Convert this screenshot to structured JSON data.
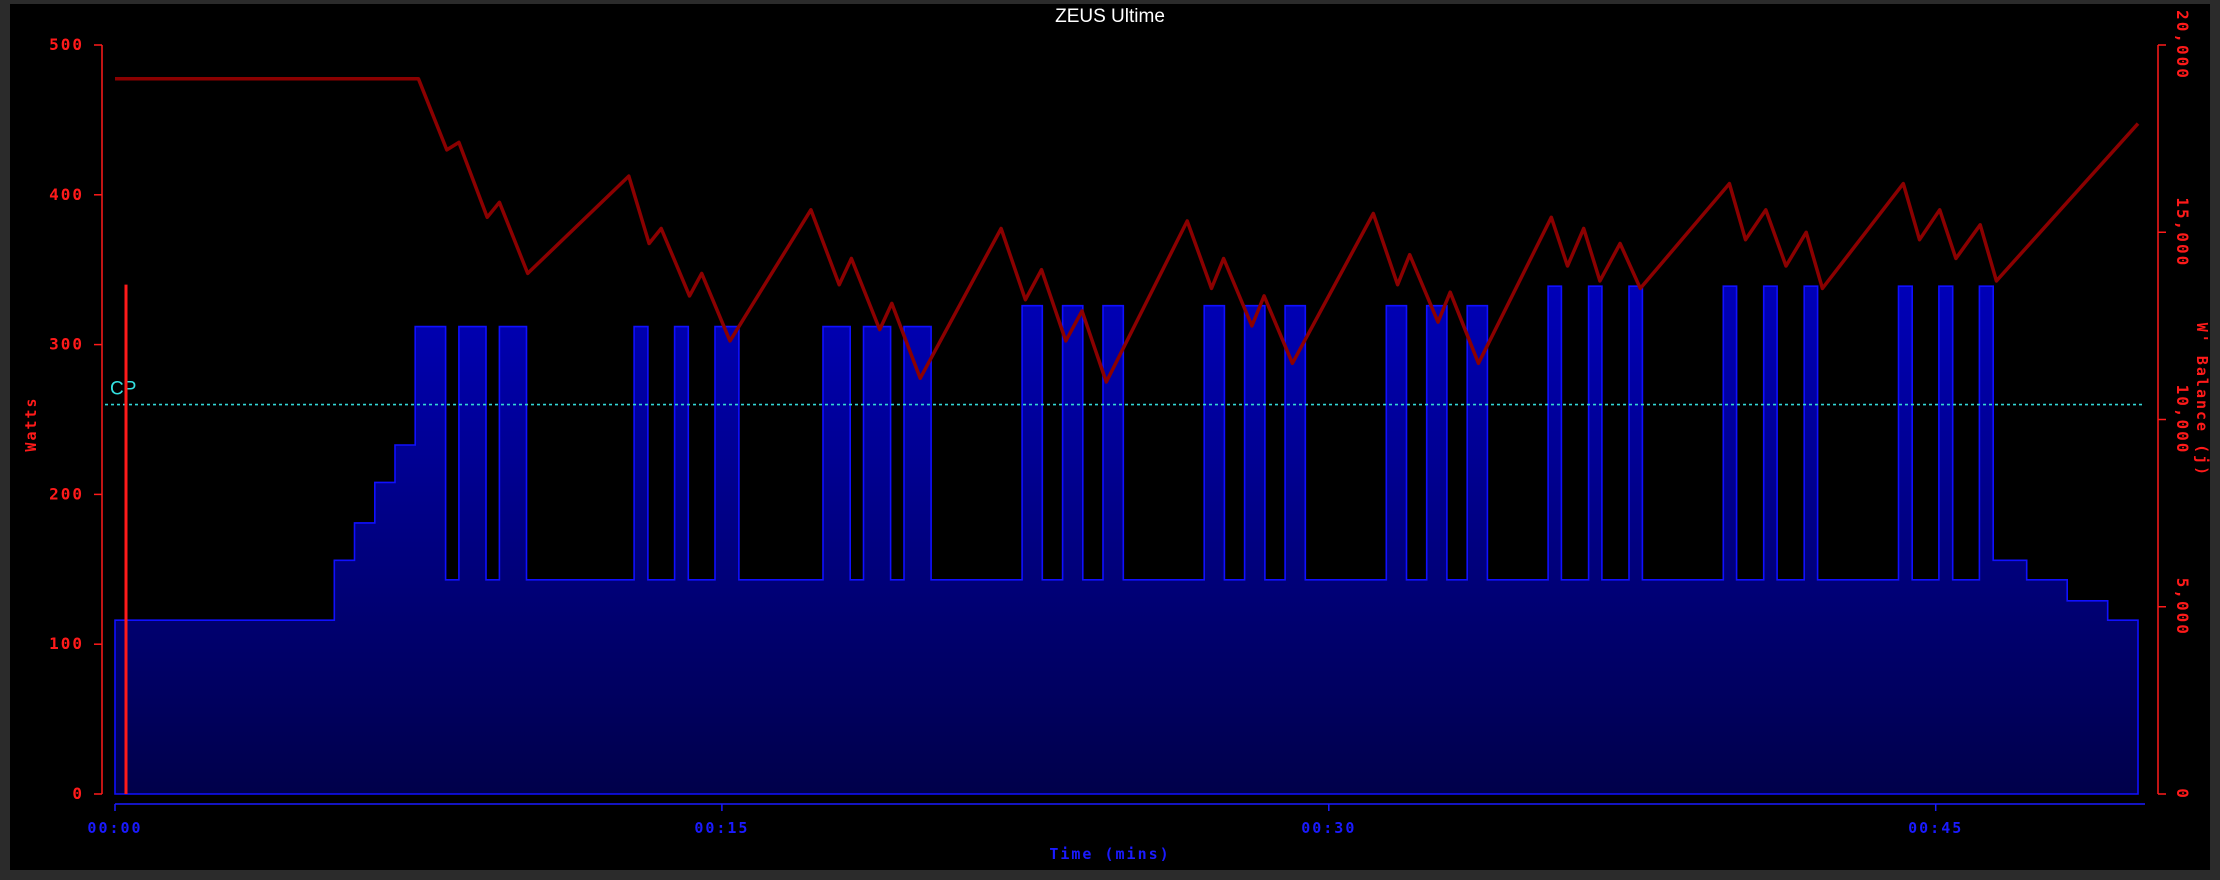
{
  "chart_data": {
    "type": "area",
    "title": "ZEUS Ultime",
    "xlabel": "Time (mins)",
    "ylabel_left": "Watts",
    "ylabel_right": "W' Balance (j)",
    "xlim": [
      0,
      50
    ],
    "ylim_left": [
      0,
      500
    ],
    "ylim_right": [
      0,
      20000
    ],
    "x_ticks": [
      {
        "value": 0,
        "label": "00:00"
      },
      {
        "value": 15,
        "label": "00:15"
      },
      {
        "value": 30,
        "label": "00:30"
      },
      {
        "value": 45,
        "label": "00:45"
      }
    ],
    "y_ticks_left": [
      {
        "value": 0,
        "label": "0"
      },
      {
        "value": 100,
        "label": "100"
      },
      {
        "value": 200,
        "label": "200"
      },
      {
        "value": 300,
        "label": "300"
      },
      {
        "value": 400,
        "label": "400"
      },
      {
        "value": 500,
        "label": "500"
      }
    ],
    "y_ticks_right": [
      {
        "value": 0,
        "label": "0"
      },
      {
        "value": 5000,
        "label": "5,000"
      },
      {
        "value": 10000,
        "label": "10,000"
      },
      {
        "value": 15000,
        "label": "15,000"
      },
      {
        "value": 20000,
        "label": "20,000"
      }
    ],
    "cp": {
      "label": "CP",
      "watts": 260
    },
    "series": [
      {
        "name": "Watts",
        "kind": "step",
        "color": "#1010ff",
        "x": [
          0,
          5.42,
          5.92,
          6.42,
          6.92,
          7.42,
          8.17,
          8.5,
          9.17,
          9.5,
          10.17,
          10.75,
          12.83,
          13.17,
          13.83,
          14.17,
          14.83,
          15.42,
          17.5,
          18.17,
          18.5,
          19.17,
          19.5,
          20.17,
          20.83,
          22.42,
          22.92,
          23.42,
          23.92,
          24.42,
          24.92,
          25.42,
          26.92,
          27.42,
          27.92,
          28.42,
          28.92,
          29.42,
          31.42,
          31.92,
          32.42,
          32.92,
          33.42,
          33.92,
          35.42,
          35.75,
          36.42,
          36.75,
          37.42,
          37.75,
          39.75,
          40.08,
          40.75,
          41.08,
          41.75,
          42.08,
          44.08,
          44.42,
          45.08,
          45.42,
          46.08,
          46.42,
          47.25,
          48.25,
          49.25,
          50
        ],
        "values": [
          116,
          156,
          181,
          208,
          233,
          312,
          143,
          312,
          143,
          312,
          143,
          143,
          312,
          143,
          312,
          143,
          312,
          143,
          312,
          143,
          312,
          143,
          312,
          143,
          143,
          326,
          143,
          326,
          143,
          326,
          143,
          143,
          326,
          143,
          326,
          143,
          326,
          143,
          326,
          143,
          326,
          143,
          326,
          143,
          339,
          143,
          339,
          143,
          339,
          143,
          339,
          143,
          339,
          143,
          339,
          143,
          339,
          143,
          339,
          143,
          339,
          156,
          143,
          129,
          116,
          116
        ]
      },
      {
        "name": "W' Balance",
        "kind": "line",
        "color": "#8b0000",
        "axis": "right",
        "x": [
          0,
          7.5,
          8.2,
          8.5,
          9.2,
          9.5,
          10.2,
          12.7,
          13.2,
          13.5,
          14.2,
          14.5,
          15.2,
          17.2,
          17.9,
          18.2,
          18.9,
          19.2,
          19.9,
          21.9,
          22.5,
          22.9,
          23.5,
          23.9,
          24.5,
          26.5,
          27.1,
          27.4,
          28.1,
          28.4,
          29.1,
          31.1,
          31.7,
          32.0,
          32.7,
          33.0,
          33.7,
          35.5,
          35.9,
          36.3,
          36.7,
          37.2,
          37.7,
          39.9,
          40.3,
          40.8,
          41.3,
          41.8,
          42.2,
          44.2,
          44.6,
          45.1,
          45.5,
          46.1,
          46.5,
          50
        ],
        "values": [
          19100,
          19100,
          17200,
          17400,
          15400,
          15800,
          13900,
          16500,
          14700,
          15100,
          13300,
          13900,
          12100,
          15600,
          13600,
          14300,
          12400,
          13100,
          11100,
          15100,
          13200,
          14000,
          12100,
          12900,
          11000,
          15300,
          13500,
          14300,
          12500,
          13300,
          11500,
          15500,
          13600,
          14400,
          12600,
          13400,
          11500,
          15400,
          14100,
          15100,
          13700,
          14700,
          13500,
          16300,
          14800,
          15600,
          14100,
          15000,
          13500,
          16300,
          14800,
          15600,
          14300,
          15200,
          13700,
          17900
        ]
      }
    ]
  }
}
